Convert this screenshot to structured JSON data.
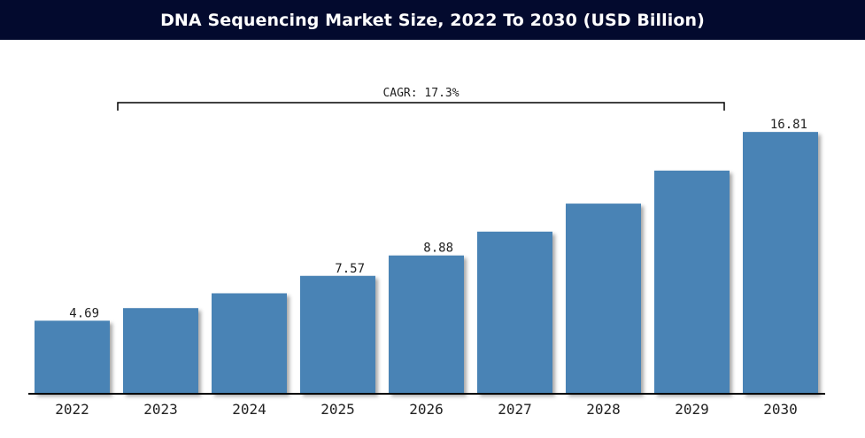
{
  "chart_data": {
    "type": "bar",
    "title": "DNA Sequencing Market Size, 2022 To 2030 (USD Billion)",
    "categories": [
      "2022",
      "2023",
      "2024",
      "2025",
      "2026",
      "2027",
      "2028",
      "2029",
      "2030"
    ],
    "values": [
      4.69,
      5.5,
      6.45,
      7.57,
      8.88,
      10.41,
      12.21,
      14.33,
      16.81
    ],
    "data_labels": [
      "4.69",
      "",
      "",
      "7.57",
      "8.88",
      "",
      "",
      "",
      "16.81"
    ],
    "annotation": {
      "text": "CAGR: 17.3%",
      "from_category": "2023",
      "to_category": "2029"
    },
    "ylim": [
      0,
      17
    ],
    "xlabel": "",
    "ylabel": "",
    "grid": false,
    "legend": "none",
    "colors": {
      "bar": "#4a83b5",
      "title_background": "#030a2e",
      "title_text": "#ffffff",
      "axis": "#000000"
    }
  }
}
